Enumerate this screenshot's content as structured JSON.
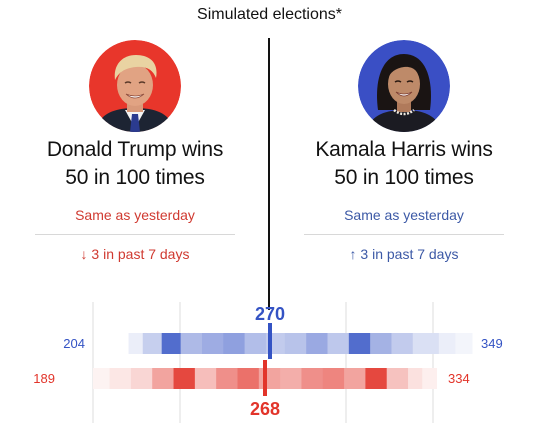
{
  "header": {
    "title": "Simulated elections*"
  },
  "candidates": {
    "trump": {
      "name_line": "Donald Trump wins",
      "odds_line": "50 in 100 times",
      "change_text": "Same as yesterday",
      "week_text": "↓ 3 in past 7 days",
      "color": "#e2342a",
      "portrait_bg": "#e8362b"
    },
    "harris": {
      "name_line": "Kamala Harris wins",
      "odds_line": "50 in 100 times",
      "change_text": "Same as yesterday",
      "week_text": "↑ 3 in past 7 days",
      "color": "#3453c4",
      "portrait_bg": "#3a4fc5"
    }
  },
  "chart_data": {
    "type": "heatmap",
    "xlim": [
      189,
      349
    ],
    "threshold": 270,
    "series": [
      {
        "name": "Harris",
        "min_label": "204",
        "max_label": "349",
        "median_label": "270",
        "median": 270,
        "range": [
          204,
          349
        ],
        "color": "#3453c4",
        "bins": [
          {
            "from": 204,
            "to": 210,
            "intensity": 0.1
          },
          {
            "from": 210,
            "to": 218,
            "intensity": 0.28
          },
          {
            "from": 218,
            "to": 226,
            "intensity": 0.85
          },
          {
            "from": 226,
            "to": 235,
            "intensity": 0.4
          },
          {
            "from": 235,
            "to": 244,
            "intensity": 0.48
          },
          {
            "from": 244,
            "to": 253,
            "intensity": 0.55
          },
          {
            "from": 253,
            "to": 262,
            "intensity": 0.38
          },
          {
            "from": 262,
            "to": 270,
            "intensity": 0.3
          },
          {
            "from": 270,
            "to": 279,
            "intensity": 0.35
          },
          {
            "from": 279,
            "to": 288,
            "intensity": 0.5
          },
          {
            "from": 288,
            "to": 297,
            "intensity": 0.32
          },
          {
            "from": 297,
            "to": 306,
            "intensity": 0.85
          },
          {
            "from": 306,
            "to": 315,
            "intensity": 0.45
          },
          {
            "from": 315,
            "to": 324,
            "intensity": 0.3
          },
          {
            "from": 324,
            "to": 335,
            "intensity": 0.18
          },
          {
            "from": 335,
            "to": 342,
            "intensity": 0.1
          },
          {
            "from": 342,
            "to": 349,
            "intensity": 0.06
          }
        ]
      },
      {
        "name": "Trump",
        "min_label": "189",
        "max_label": "334",
        "median_label": "268",
        "median": 268,
        "range": [
          189,
          334
        ],
        "color": "#e2342a",
        "bins": [
          {
            "from": 189,
            "to": 196,
            "intensity": 0.06
          },
          {
            "from": 196,
            "to": 205,
            "intensity": 0.12
          },
          {
            "from": 205,
            "to": 214,
            "intensity": 0.2
          },
          {
            "from": 214,
            "to": 223,
            "intensity": 0.45
          },
          {
            "from": 223,
            "to": 232,
            "intensity": 0.9
          },
          {
            "from": 232,
            "to": 241,
            "intensity": 0.32
          },
          {
            "from": 241,
            "to": 250,
            "intensity": 0.55
          },
          {
            "from": 250,
            "to": 259,
            "intensity": 0.7
          },
          {
            "from": 259,
            "to": 268,
            "intensity": 0.45
          },
          {
            "from": 268,
            "to": 277,
            "intensity": 0.4
          },
          {
            "from": 277,
            "to": 286,
            "intensity": 0.55
          },
          {
            "from": 286,
            "to": 295,
            "intensity": 0.6
          },
          {
            "from": 295,
            "to": 304,
            "intensity": 0.45
          },
          {
            "from": 304,
            "to": 313,
            "intensity": 0.9
          },
          {
            "from": 313,
            "to": 322,
            "intensity": 0.3
          },
          {
            "from": 322,
            "to": 328,
            "intensity": 0.15
          },
          {
            "from": 328,
            "to": 334,
            "intensity": 0.08
          }
        ]
      }
    ]
  }
}
